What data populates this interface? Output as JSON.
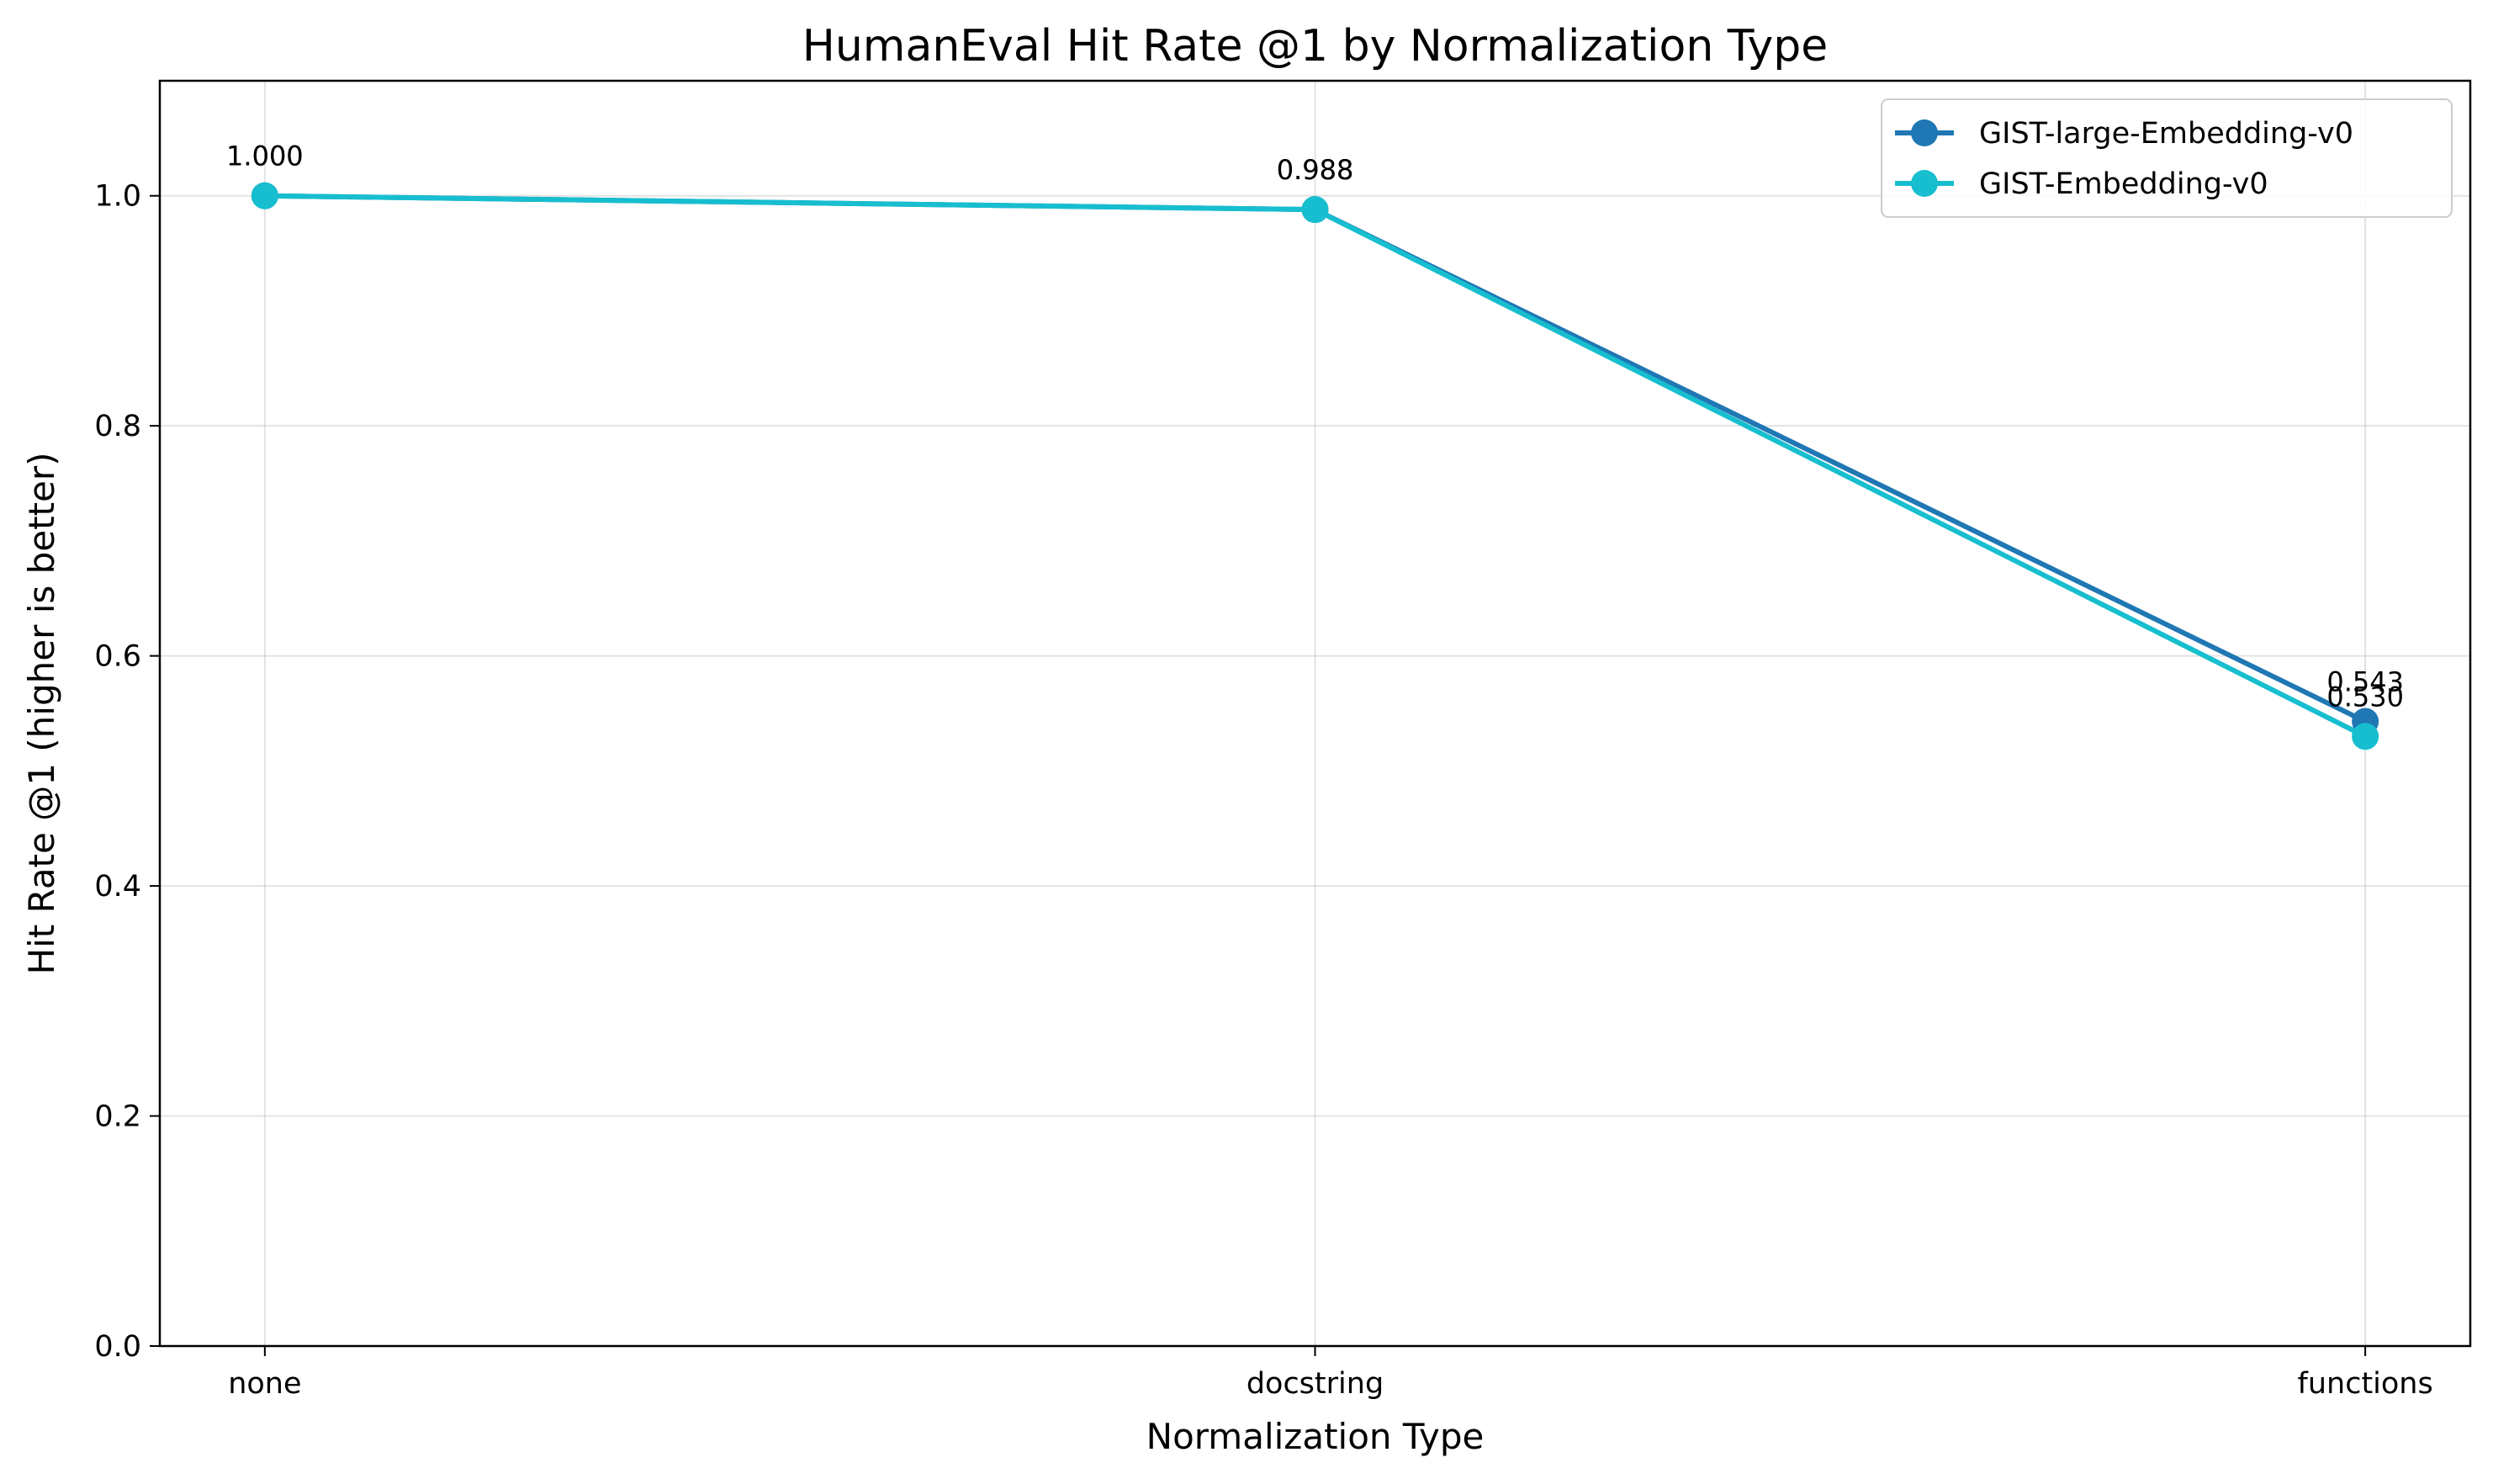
{
  "chart_data": {
    "type": "line",
    "title": "HumanEval Hit Rate @1 by Normalization Type",
    "xlabel": "Normalization Type",
    "ylabel": "Hit Rate @1 (higher is better)",
    "categories": [
      "none",
      "docstring",
      "functions"
    ],
    "ylim": [
      0,
      1.1
    ],
    "yticks": [
      "0.0",
      "0.2",
      "0.4",
      "0.6",
      "0.8",
      "1.0"
    ],
    "grid": true,
    "legend_position": "top-right",
    "series": [
      {
        "name": "GIST-large-Embedding-v0",
        "values": [
          1.0,
          0.988,
          0.543
        ],
        "labels": [
          "1.000",
          "0.988",
          "0.543"
        ],
        "color": "#1f77b4"
      },
      {
        "name": "GIST-Embedding-v0",
        "values": [
          1.0,
          0.988,
          0.53
        ],
        "labels": [
          "1.000",
          "0.988",
          "0.530"
        ],
        "color": "#17becf"
      }
    ]
  }
}
